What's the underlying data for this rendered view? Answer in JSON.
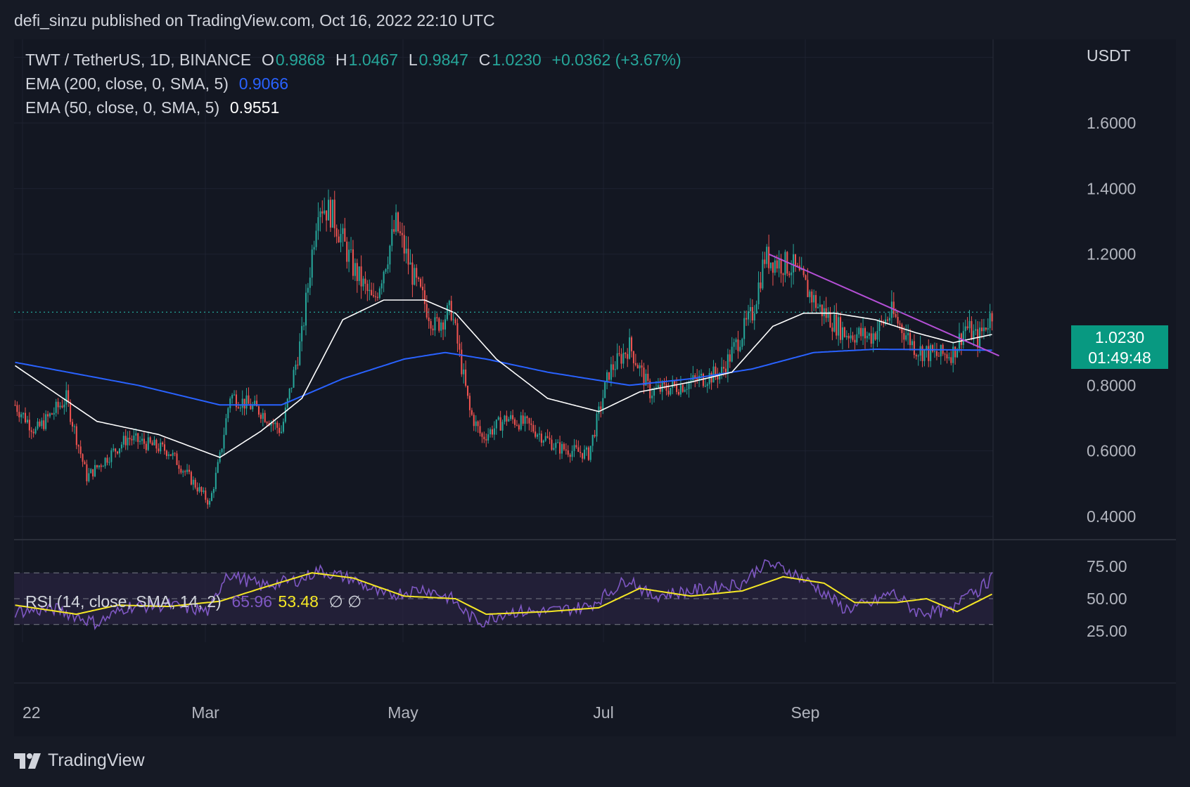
{
  "header": {
    "published": "defi_sinzu published on TradingView.com, Oct 16, 2022 22:10 UTC"
  },
  "legend": {
    "symbol": "TWT / TetherUS, 1D, BINANCE",
    "o_label": "O",
    "o_value": "0.9868",
    "h_label": "H",
    "h_value": "1.0467",
    "l_label": "L",
    "l_value": "0.9847",
    "c_label": "C",
    "c_value": "1.0230",
    "change": "+0.0362 (+3.67%)",
    "ema200_label": "EMA (200, close, 0, SMA, 5)",
    "ema200_value": "0.9066",
    "ema50_label": "EMA (50, close, 0, SMA, 5)",
    "ema50_value": "0.9551",
    "rsi_label": "RSI (14, close, SMA, 14, 2)",
    "rsi_value": "65.96",
    "rsi_ma_value": "53.48",
    "rsi_extra": "∅ ∅"
  },
  "price_tag": {
    "price": "1.0230",
    "countdown": "01:49:48"
  },
  "currency": "USDT",
  "footer": {
    "brand": "TradingView"
  },
  "colors": {
    "up": "#26a69a",
    "down": "#ef5350",
    "ema200": "#2962ff",
    "ema50": "#ffffff",
    "trendline": "#b44fd6",
    "rsi": "#7e57c2",
    "rsi_ma": "#f5e725"
  },
  "chart_data": {
    "type": "candlestick",
    "x_ticks": [
      "22",
      "Mar",
      "May",
      "Jul",
      "Sep"
    ],
    "price_ticks": [
      "1.6000",
      "1.4000",
      "1.2000",
      "0.8000",
      "0.6000",
      "0.4000"
    ],
    "price_range": [
      0.38,
      1.78
    ],
    "rsi_ticks": [
      "75.00",
      "50.00",
      "25.00"
    ],
    "rsi_range": [
      20,
      80
    ],
    "last_price": 1.023,
    "price_keypoints": [
      [
        0,
        0.74
      ],
      [
        10,
        0.66
      ],
      [
        25,
        0.76
      ],
      [
        35,
        0.52
      ],
      [
        55,
        0.64
      ],
      [
        75,
        0.6
      ],
      [
        95,
        0.44
      ],
      [
        100,
        0.58
      ],
      [
        105,
        0.77
      ],
      [
        120,
        0.72
      ],
      [
        130,
        0.66
      ],
      [
        140,
        0.95
      ],
      [
        148,
        1.36
      ],
      [
        155,
        1.32
      ],
      [
        165,
        1.16
      ],
      [
        175,
        1.05
      ],
      [
        186,
        1.29
      ],
      [
        195,
        1.12
      ],
      [
        205,
        0.98
      ],
      [
        213,
        1.03
      ],
      [
        222,
        0.72
      ],
      [
        228,
        0.64
      ],
      [
        240,
        0.7
      ],
      [
        250,
        0.68
      ],
      [
        265,
        0.61
      ],
      [
        280,
        0.59
      ],
      [
        290,
        0.84
      ],
      [
        300,
        0.92
      ],
      [
        310,
        0.78
      ],
      [
        325,
        0.8
      ],
      [
        345,
        0.84
      ],
      [
        360,
        1.02
      ],
      [
        366,
        1.19
      ],
      [
        380,
        1.16
      ],
      [
        392,
        1.04
      ],
      [
        405,
        0.96
      ],
      [
        418,
        0.95
      ],
      [
        428,
        1.02
      ],
      [
        440,
        0.91
      ],
      [
        450,
        0.89
      ],
      [
        458,
        0.9
      ],
      [
        464,
        0.98
      ],
      [
        470,
        0.94
      ],
      [
        477,
        1.02
      ]
    ],
    "ema200_keypoints": [
      [
        0,
        0.87
      ],
      [
        60,
        0.8
      ],
      [
        100,
        0.74
      ],
      [
        130,
        0.74
      ],
      [
        160,
        0.82
      ],
      [
        190,
        0.88
      ],
      [
        210,
        0.9
      ],
      [
        230,
        0.88
      ],
      [
        260,
        0.84
      ],
      [
        300,
        0.8
      ],
      [
        330,
        0.82
      ],
      [
        360,
        0.85
      ],
      [
        390,
        0.9
      ],
      [
        420,
        0.91
      ],
      [
        477,
        0.907
      ]
    ],
    "ema50_keypoints": [
      [
        0,
        0.86
      ],
      [
        40,
        0.69
      ],
      [
        70,
        0.65
      ],
      [
        100,
        0.58
      ],
      [
        120,
        0.66
      ],
      [
        140,
        0.76
      ],
      [
        160,
        1.0
      ],
      [
        180,
        1.06
      ],
      [
        200,
        1.06
      ],
      [
        215,
        1.02
      ],
      [
        235,
        0.88
      ],
      [
        260,
        0.76
      ],
      [
        285,
        0.72
      ],
      [
        305,
        0.78
      ],
      [
        330,
        0.81
      ],
      [
        350,
        0.84
      ],
      [
        370,
        0.98
      ],
      [
        385,
        1.02
      ],
      [
        400,
        1.02
      ],
      [
        420,
        1.0
      ],
      [
        440,
        0.96
      ],
      [
        458,
        0.93
      ],
      [
        477,
        0.955
      ]
    ],
    "rsi_keypoints": [
      [
        0,
        40
      ],
      [
        20,
        42
      ],
      [
        40,
        31
      ],
      [
        55,
        44
      ],
      [
        75,
        45
      ],
      [
        95,
        40
      ],
      [
        103,
        70
      ],
      [
        120,
        60
      ],
      [
        140,
        65
      ],
      [
        148,
        72
      ],
      [
        165,
        65
      ],
      [
        180,
        52
      ],
      [
        200,
        58
      ],
      [
        213,
        50
      ],
      [
        222,
        36
      ],
      [
        228,
        32
      ],
      [
        240,
        40
      ],
      [
        260,
        40
      ],
      [
        280,
        44
      ],
      [
        300,
        66
      ],
      [
        310,
        52
      ],
      [
        330,
        56
      ],
      [
        355,
        62
      ],
      [
        366,
        78
      ],
      [
        380,
        70
      ],
      [
        392,
        58
      ],
      [
        405,
        42
      ],
      [
        418,
        46
      ],
      [
        428,
        55
      ],
      [
        440,
        40
      ],
      [
        458,
        40
      ],
      [
        464,
        58
      ],
      [
        470,
        56
      ],
      [
        477,
        66
      ]
    ],
    "rsi_ma_keypoints": [
      [
        0,
        45
      ],
      [
        30,
        38
      ],
      [
        50,
        45
      ],
      [
        75,
        44
      ],
      [
        100,
        48
      ],
      [
        120,
        58
      ],
      [
        145,
        70
      ],
      [
        165,
        66
      ],
      [
        190,
        52
      ],
      [
        215,
        50
      ],
      [
        230,
        38
      ],
      [
        260,
        40
      ],
      [
        285,
        43
      ],
      [
        305,
        58
      ],
      [
        330,
        52
      ],
      [
        355,
        56
      ],
      [
        375,
        67
      ],
      [
        395,
        62
      ],
      [
        410,
        47
      ],
      [
        430,
        47
      ],
      [
        445,
        50
      ],
      [
        460,
        40
      ],
      [
        477,
        53.5
      ]
    ],
    "trendline": [
      [
        368,
        1.2
      ],
      [
        477,
        0.89
      ]
    ]
  }
}
